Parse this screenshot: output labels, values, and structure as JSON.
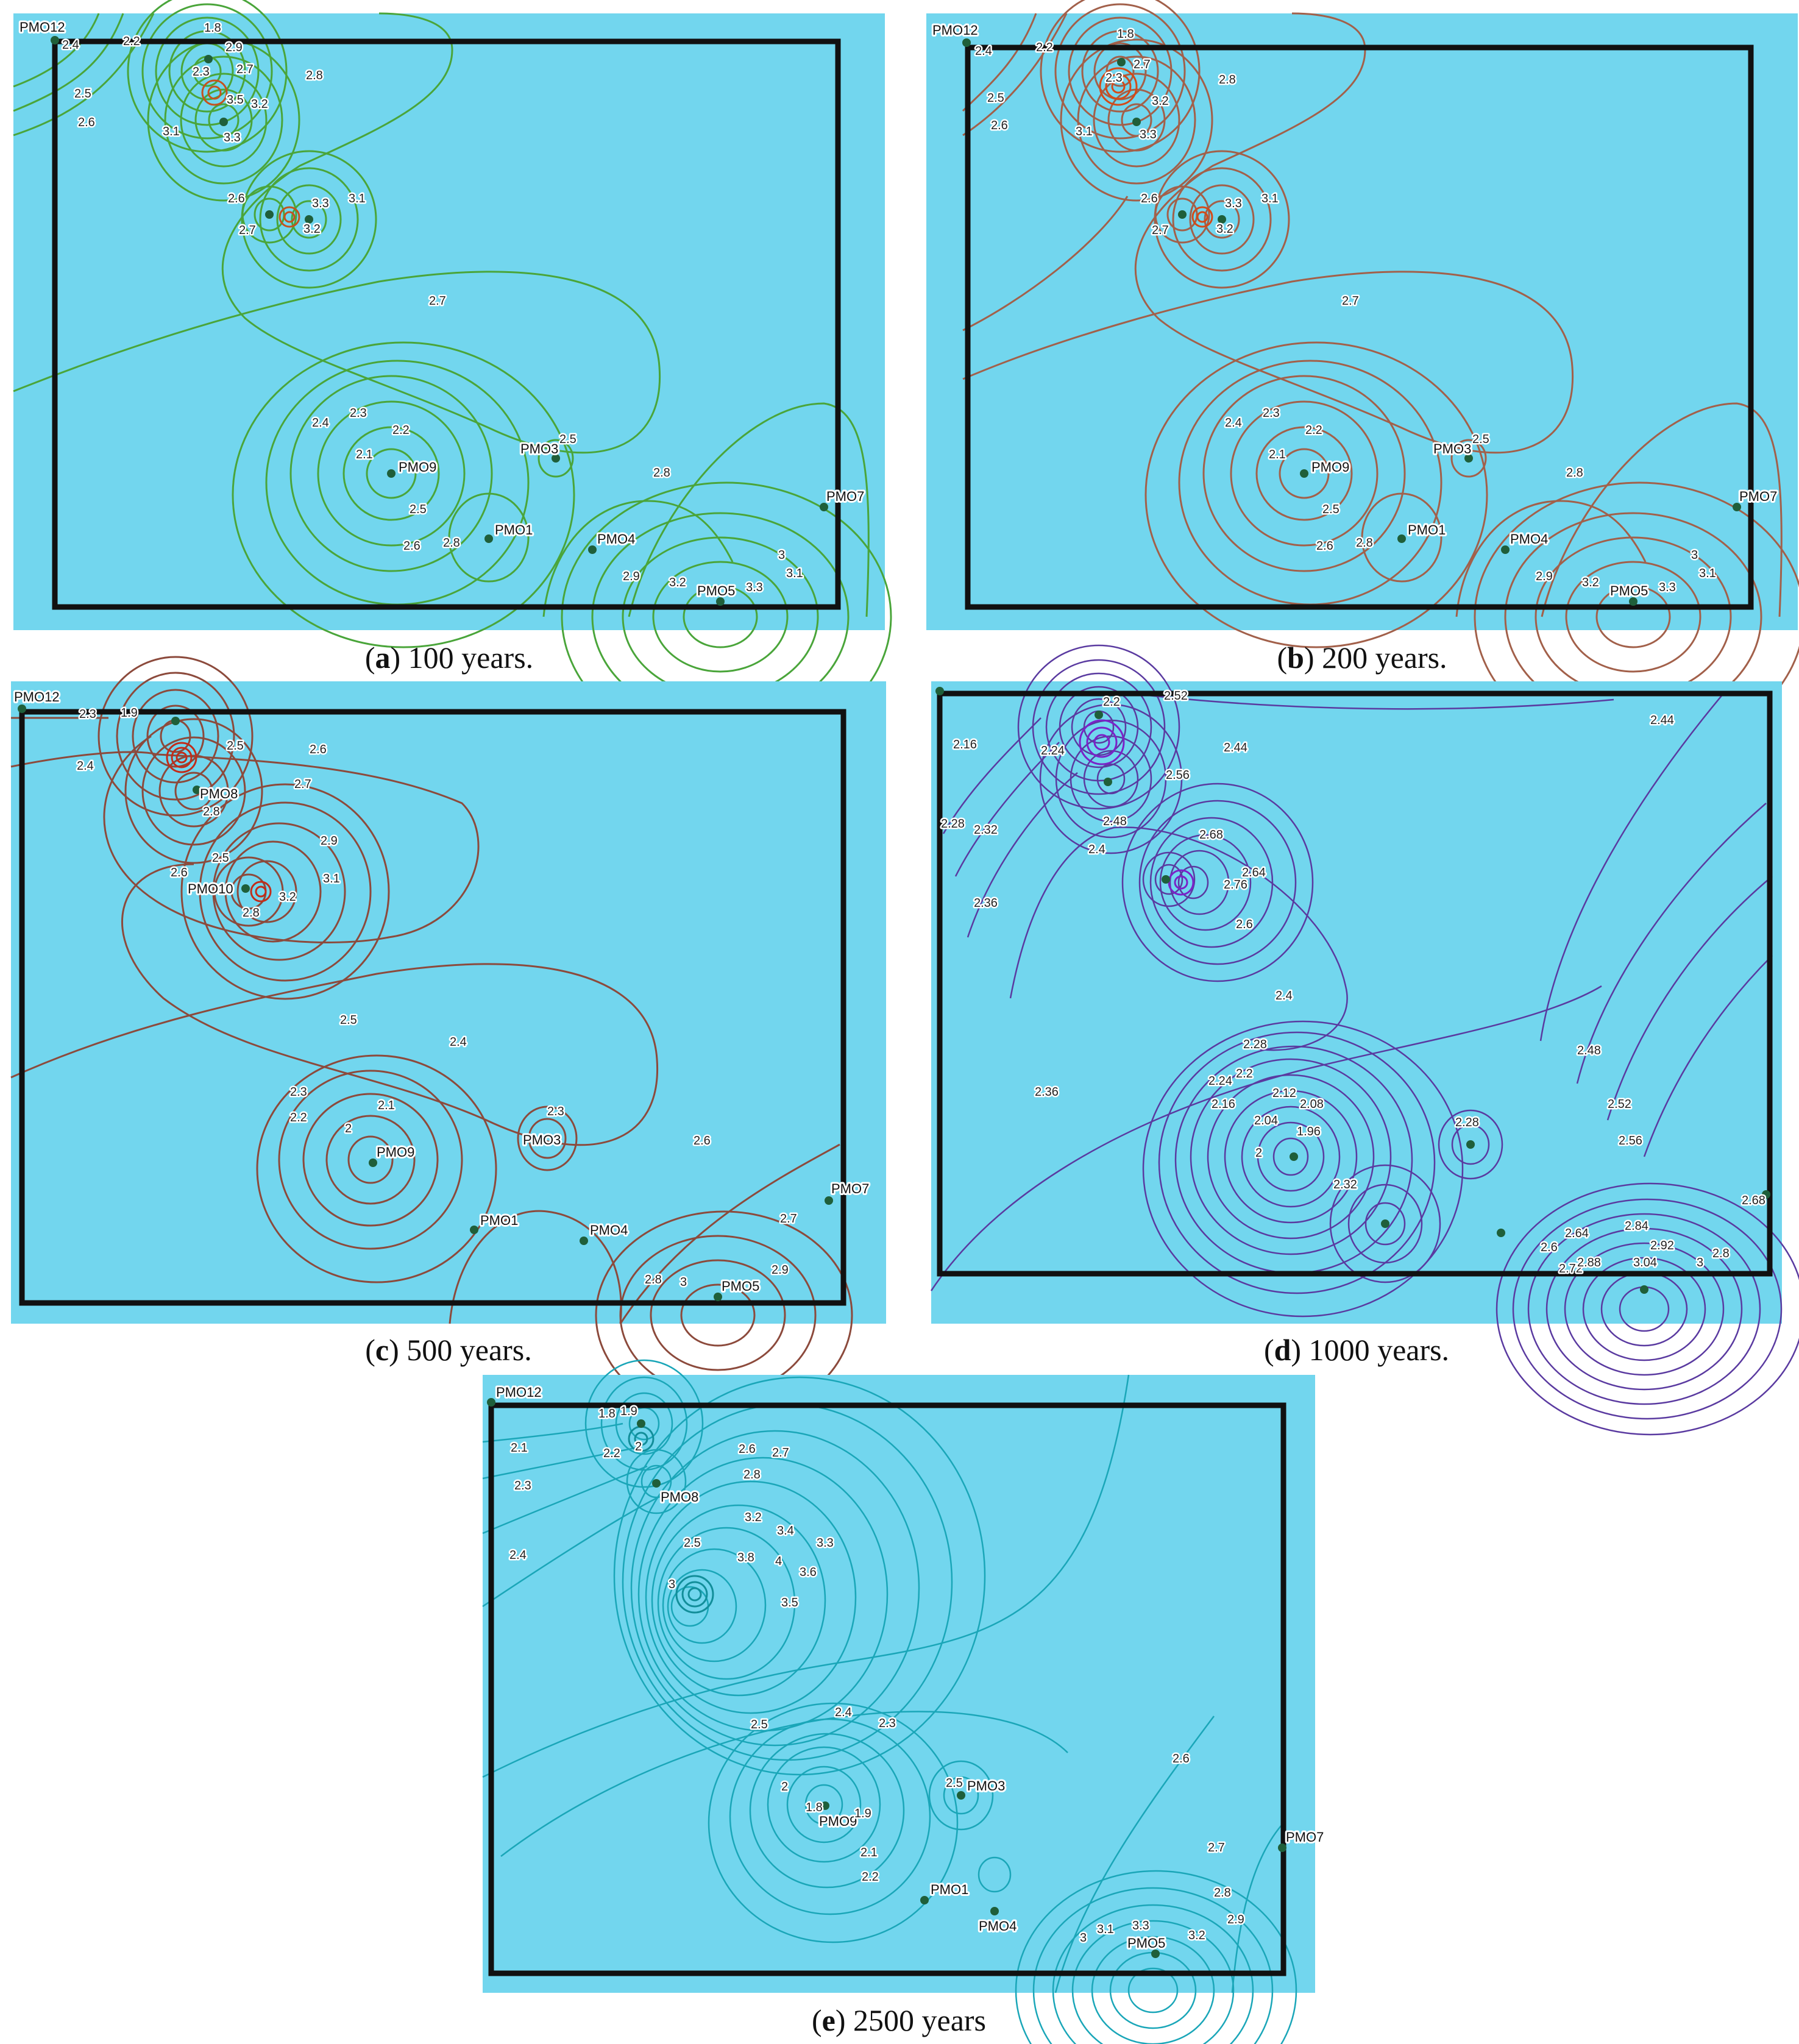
{
  "panels": [
    {
      "id": "a",
      "caption_letter": "a",
      "caption_text": "100 years.",
      "colors": {
        "line": "#4aa53a",
        "core": "#c4521f"
      },
      "wells": [
        "PMO12",
        "PMO3",
        "PMO7",
        "PMO1",
        "PMO4",
        "PMO5",
        "PMO9"
      ],
      "contour_labels": [
        "1.8",
        "2.4",
        "2.2",
        "2.3",
        "2.5",
        "2.6",
        "2.7",
        "2.8",
        "2.9",
        "3",
        "3.1",
        "3.2",
        "3.3",
        "3.5",
        "2.7",
        "2.6",
        "2.7",
        "3.3",
        "3.1",
        "3.2",
        "2.4",
        "2.3",
        "2.2",
        "2.1",
        "2.5",
        "2.6",
        "2.8",
        "2.9",
        "3",
        "3.1",
        "3.2",
        "3.3",
        "2.8",
        "2.5",
        "2.7"
      ]
    },
    {
      "id": "b",
      "caption_letter": "b",
      "caption_text": "200 years.",
      "colors": {
        "line": "#a2604a",
        "core": "#d44a18"
      },
      "wells": [
        "PMO12",
        "PMO3",
        "PMO7",
        "PMO1",
        "PMO4",
        "PMO5",
        "PMO9"
      ],
      "contour_labels": [
        "1.8",
        "2.4",
        "2.2",
        "2.3",
        "2.5",
        "2.6",
        "2.7",
        "2.8",
        "3.1",
        "3.2",
        "3.3",
        "2.6",
        "2.7",
        "3.3",
        "3.1",
        "3.2",
        "2.7",
        "2.4",
        "2.3",
        "2.2",
        "2.1",
        "2.5",
        "2.6",
        "2.8",
        "2.9",
        "3.2",
        "3.3",
        "3",
        "3.1",
        "2.8",
        "2.5"
      ]
    },
    {
      "id": "c",
      "caption_letter": "c",
      "caption_text": "500 years.",
      "colors": {
        "line": "#8c4a3c",
        "core": "#c22c1a"
      },
      "wells": [
        "PMO12",
        "PMO8",
        "PMO10",
        "PMO3",
        "PMO7",
        "PMO1",
        "PMO4",
        "PMO5",
        "PMO9"
      ],
      "contour_labels": [
        "1.9",
        "2.3",
        "2.4",
        "2.5",
        "2.6",
        "2.7",
        "2.8",
        "2.9",
        "3.1",
        "3.2",
        "2.6",
        "2.5",
        "2.8",
        "2.5",
        "2.4",
        "2.3",
        "2.2",
        "2",
        "2.1",
        "2.3",
        "2.6",
        "2.7",
        "2.8",
        "2.9",
        "3"
      ]
    },
    {
      "id": "d",
      "caption_letter": "d",
      "caption_text": "1000 years.",
      "colors": {
        "line": "#5a3aa0",
        "core": "#7a22c8"
      },
      "wells": [],
      "contour_labels": [
        "2.44",
        "2.44",
        "2.16",
        "2.24",
        "2.28",
        "2.32",
        "2.36",
        "2.2",
        "2.52",
        "2.56",
        "2.48",
        "2.4",
        "2.64",
        "2.68",
        "2.6",
        "2.76",
        "2.4",
        "2.36",
        "2.28",
        "2.24",
        "2.2",
        "2.16",
        "2.12",
        "2.08",
        "2.04",
        "1.96",
        "2",
        "2.32",
        "2.28",
        "2.48",
        "2.52",
        "2.56",
        "2.6",
        "2.64",
        "2.72",
        "2.84",
        "2.88",
        "2.92",
        "3.04",
        "2.8",
        "3",
        "2.68"
      ]
    },
    {
      "id": "e",
      "caption_letter": "e",
      "caption_text": "2500 years",
      "colors": {
        "line": "#1aa6b8",
        "core": "#128e9a"
      },
      "wells": [
        "PMO12",
        "PMO8",
        "PMO3",
        "PMO7",
        "PMO1",
        "PMO4",
        "PMO5",
        "PMO9"
      ],
      "contour_labels": [
        "1.8",
        "1.9",
        "2",
        "2.1",
        "2.2",
        "2.3",
        "2.4",
        "2.5",
        "2.6",
        "2.7",
        "2.8",
        "3",
        "3.2",
        "3.4",
        "3.3",
        "3.6",
        "3.5",
        "3.8",
        "4",
        "2.5",
        "2.4",
        "2.3",
        "2",
        "1.8",
        "1.9",
        "2.1",
        "2.2",
        "2.5",
        "2.6",
        "2.7",
        "2.8",
        "2.9",
        "3",
        "3.1",
        "3.2",
        "3.3"
      ]
    }
  ]
}
